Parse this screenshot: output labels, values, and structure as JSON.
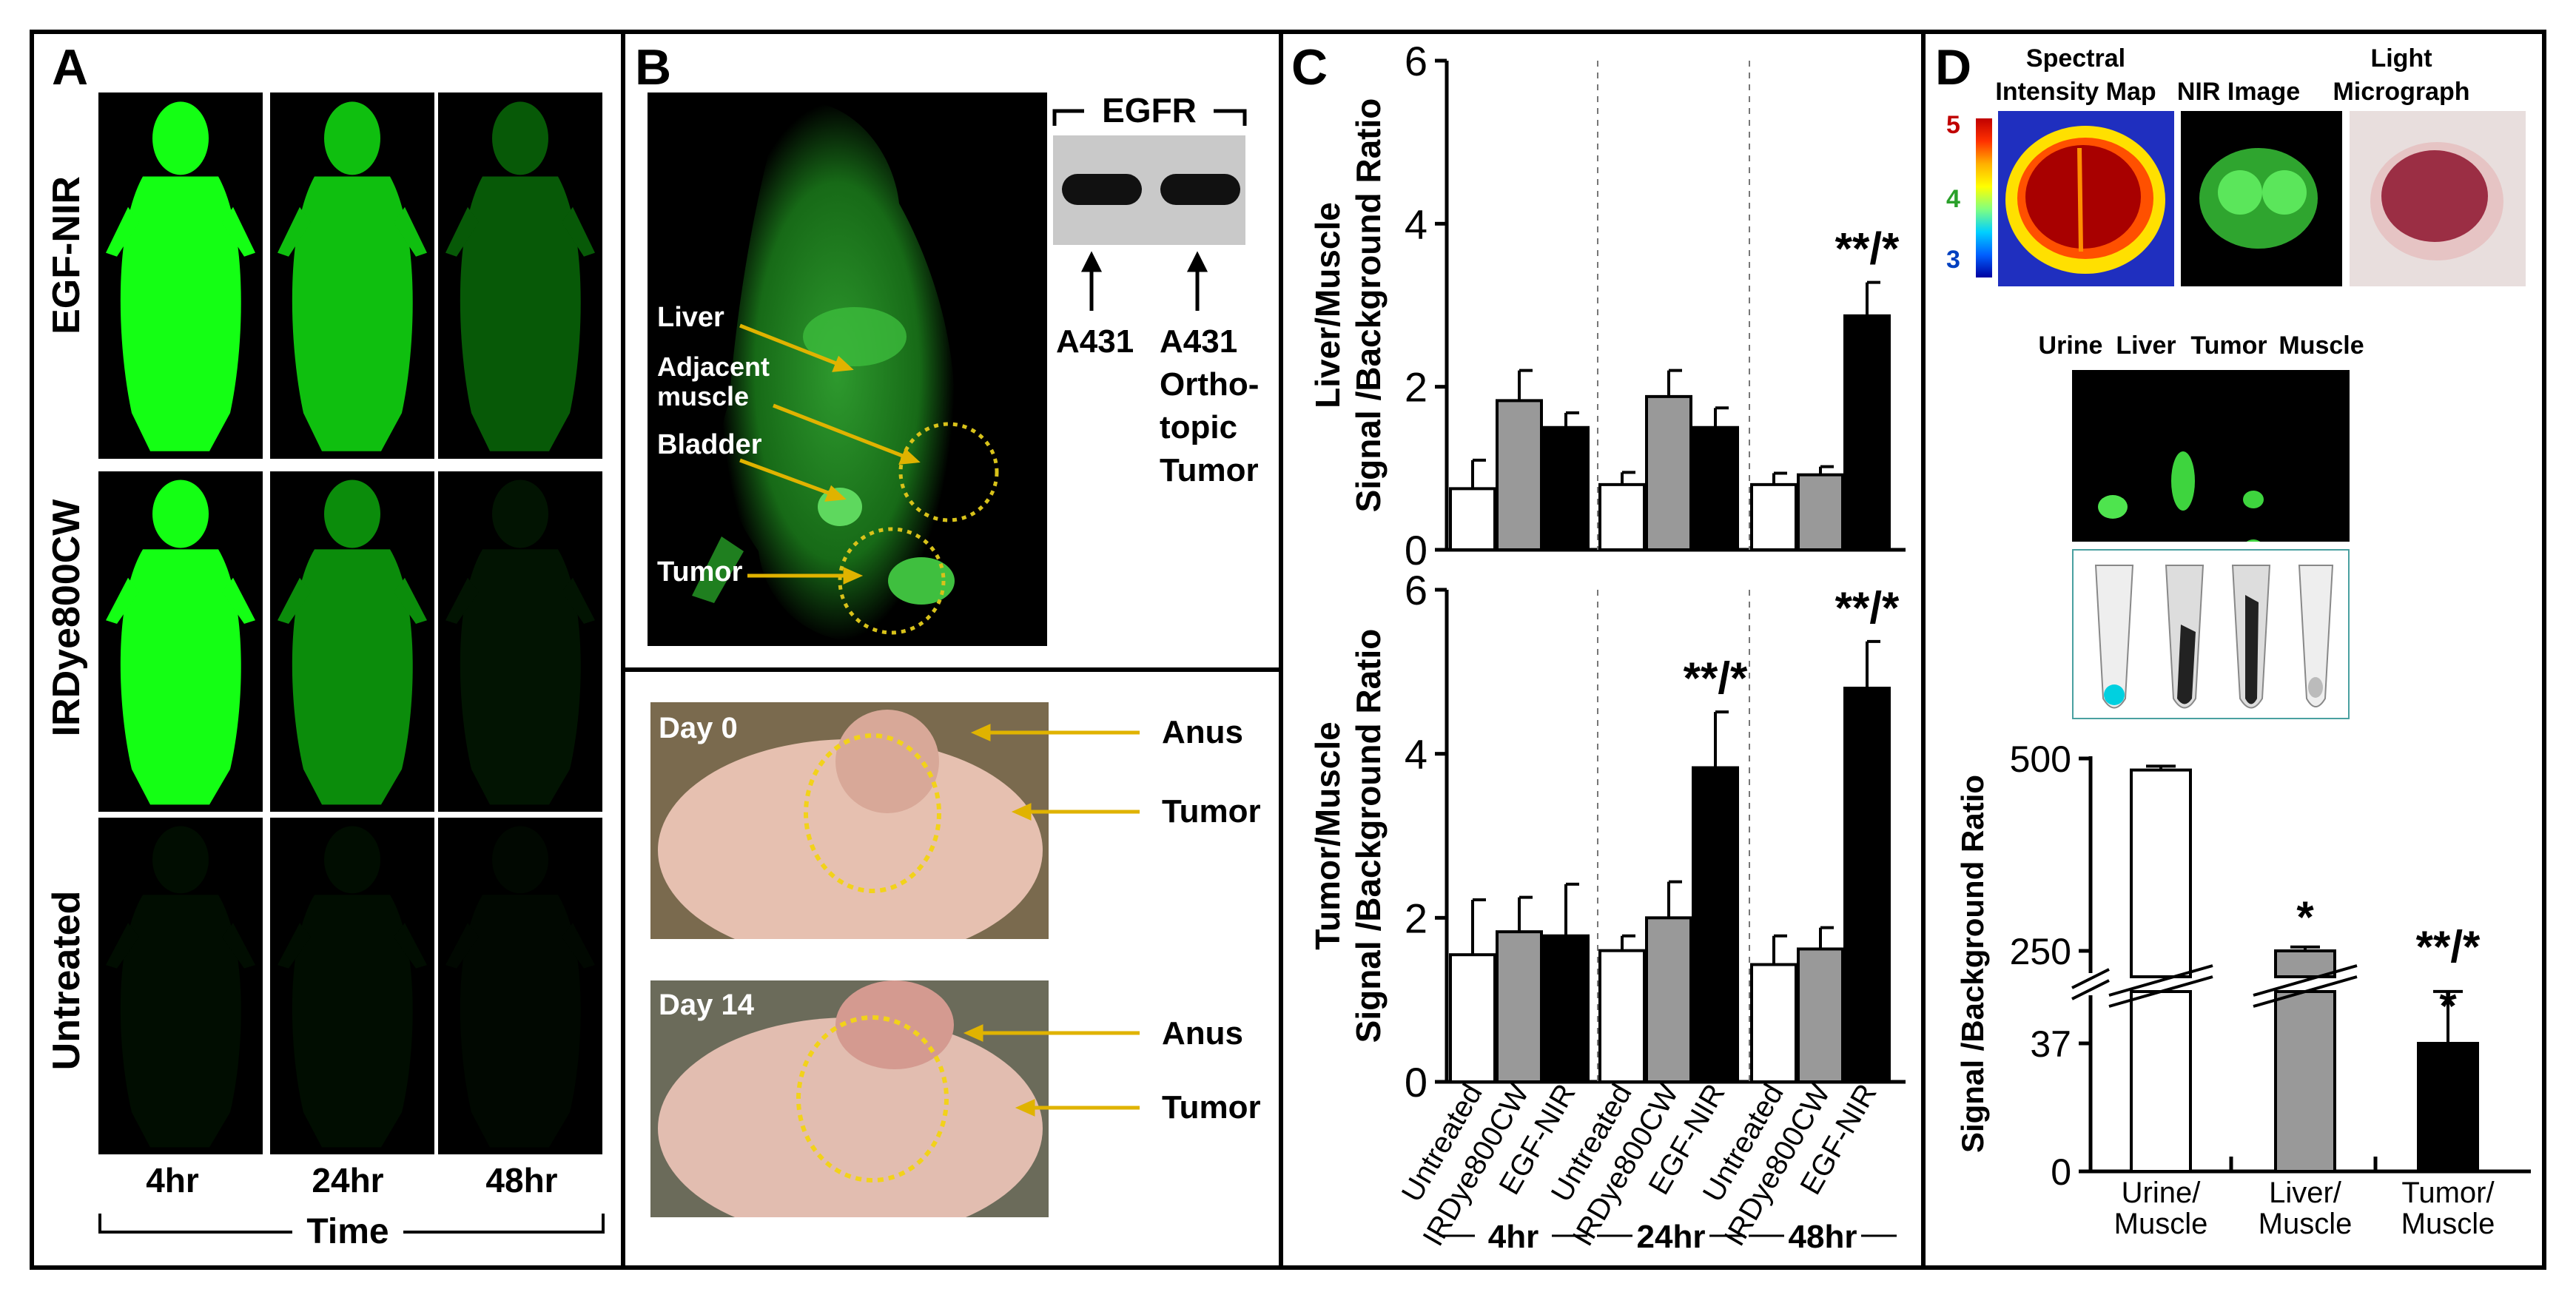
{
  "panels": {
    "A": {
      "label": "A",
      "rows": [
        "EGF-NIR",
        "IRDye800CW",
        "Untreated"
      ],
      "times": [
        "4hr",
        "24hr",
        "48hr"
      ],
      "axis_label": "Time",
      "intensity": [
        [
          1.0,
          0.75,
          0.35
        ],
        [
          1.0,
          0.55,
          0.08
        ],
        [
          0.05,
          0.05,
          0.03
        ]
      ]
    },
    "B": {
      "label": "B",
      "labels": {
        "liver": "Liver",
        "adjacent1": "Adjacent",
        "adjacent2": "muscle",
        "bladder": "Bladder",
        "tumor": "Tumor"
      },
      "blot": {
        "title": "EGFR",
        "lane1": "A431",
        "lane2_1": "A431",
        "lane2_2": "Ortho-",
        "lane2_3": "topic",
        "lane2_4": "Tumor"
      },
      "photos": [
        {
          "day": "Day 0",
          "anus": "Anus",
          "tumor": "Tumor"
        },
        {
          "day": "Day 14",
          "anus": "Anus",
          "tumor": "Tumor"
        }
      ]
    },
    "C": {
      "label": "C"
    },
    "D": {
      "label": "D",
      "maps": {
        "spectral1": "Spectral",
        "spectral2": "Intensity Map",
        "nir": "NIR Image",
        "light1": "Light",
        "light2": "Micrograph"
      },
      "colorbar_ticks": [
        "5",
        "4",
        "3"
      ],
      "tubes": [
        "Urine",
        "Liver",
        "Tumor",
        "Muscle"
      ]
    }
  },
  "chart_data": [
    {
      "type": "bar",
      "ylabel": [
        "Liver/Muscle",
        "Signal /Background Ratio"
      ],
      "ylim": [
        0,
        6
      ],
      "yticks": [
        "0",
        "2",
        "4",
        "6"
      ],
      "groups": [
        "4hr",
        "24hr",
        "48hr"
      ],
      "categories": [
        "Untreated",
        "IRDye800CW",
        "EGF-NIR"
      ],
      "series": [
        {
          "values": [
            0.75,
            1.83,
            1.5
          ],
          "errors": [
            0.35,
            0.37,
            0.18
          ]
        },
        {
          "values": [
            0.8,
            1.88,
            1.5
          ],
          "errors": [
            0.15,
            0.32,
            0.24
          ]
        },
        {
          "values": [
            0.8,
            0.92,
            2.87
          ],
          "errors": [
            0.14,
            0.1,
            0.41
          ]
        }
      ],
      "colors": [
        "#ffffff",
        "#999999",
        "#000000"
      ],
      "annotations": [
        {
          "group": "48hr",
          "category": "EGF-NIR",
          "text": "**/*"
        }
      ]
    },
    {
      "type": "bar",
      "ylabel": [
        "Tumor/Muscle",
        "Signal /Background Ratio"
      ],
      "ylim": [
        0,
        6
      ],
      "yticks": [
        "0",
        "2",
        "4",
        "6"
      ],
      "groups": [
        "4hr",
        "24hr",
        "48hr"
      ],
      "categories": [
        "Untreated",
        "IRDye800CW",
        "EGF-NIR"
      ],
      "series": [
        {
          "values": [
            1.55,
            1.83,
            1.78
          ],
          "errors": [
            0.67,
            0.42,
            0.63
          ]
        },
        {
          "values": [
            1.6,
            2.0,
            3.83
          ],
          "errors": [
            0.18,
            0.44,
            0.68
          ]
        },
        {
          "values": [
            1.43,
            1.62,
            4.8
          ],
          "errors": [
            0.35,
            0.26,
            0.57
          ]
        }
      ],
      "colors": [
        "#ffffff",
        "#999999",
        "#000000"
      ],
      "annotations": [
        {
          "group": "24hr",
          "category": "EGF-NIR",
          "text": "**/*"
        },
        {
          "group": "48hr",
          "category": "EGF-NIR",
          "text": "**/*"
        }
      ]
    },
    {
      "type": "bar",
      "ylabel": "Signal /Background Ratio",
      "yticks": [
        "0",
        "37",
        "250",
        "500"
      ],
      "broken_axis": true,
      "categories": [
        "Urine/\nMuscle",
        "Liver/\nMuscle",
        "Tumor/\nMuscle"
      ],
      "values": [
        485,
        250,
        37
      ],
      "errors": [
        5,
        5,
        15
      ],
      "colors": [
        "#ffffff",
        "#999999",
        "#000000"
      ],
      "annotations": [
        {
          "category": "Liver/\nMuscle",
          "text": "*"
        },
        {
          "category": "Tumor/\nMuscle",
          "text": "**/*"
        },
        {
          "category": "Tumor/\nMuscle",
          "text": "*"
        }
      ]
    }
  ]
}
